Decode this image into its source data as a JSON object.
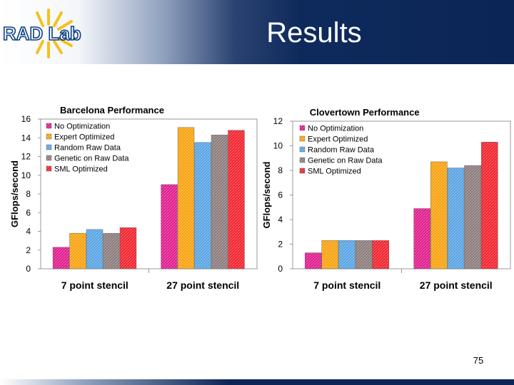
{
  "slide": {
    "title": "Results",
    "page_number": "75",
    "logo_text": "RAD Lab"
  },
  "colors": {
    "header_dark": "#0b2556",
    "title_text": "#ffffff"
  },
  "chart_data": [
    {
      "type": "bar",
      "title": "Barcelona Performance",
      "xlabel": "",
      "ylabel": "GFlops/second",
      "categories": [
        "7 point stencil",
        "27 point stencil"
      ],
      "series": [
        {
          "name": "No Optimization",
          "color": "#e0198c",
          "values": [
            2.3,
            9.0
          ]
        },
        {
          "name": "Expert Optimized",
          "color": "#f7a10c",
          "values": [
            3.8,
            15.1
          ]
        },
        {
          "name": "Random Raw Data",
          "color": "#56a3e4",
          "values": [
            4.2,
            13.5
          ]
        },
        {
          "name": "Genetic on Raw Data",
          "color": "#8a7a7a",
          "values": [
            3.8,
            14.3
          ]
        },
        {
          "name": "SML Optimized",
          "color": "#f2202a",
          "values": [
            4.4,
            14.8
          ]
        }
      ],
      "ylim": [
        0,
        16
      ],
      "yticks": [
        "0",
        "2",
        "4",
        "6",
        "8",
        "10",
        "12",
        "14",
        "16"
      ],
      "grid": false,
      "legend": "top-left"
    },
    {
      "type": "bar",
      "title": "Clovertown Performance",
      "xlabel": "",
      "ylabel": "GFlops/second",
      "categories": [
        "7 point stencil",
        "27 point stencil"
      ],
      "series": [
        {
          "name": "No Optimization",
          "color": "#e0198c",
          "values": [
            1.3,
            4.9
          ]
        },
        {
          "name": "Expert Optimized",
          "color": "#f7a10c",
          "values": [
            2.3,
            8.7
          ]
        },
        {
          "name": "Random Raw Data",
          "color": "#56a3e4",
          "values": [
            2.3,
            8.2
          ]
        },
        {
          "name": "Genetic on Raw Data",
          "color": "#8a7a7a",
          "values": [
            2.3,
            8.4
          ]
        },
        {
          "name": "SML Optimized",
          "color": "#f2202a",
          "values": [
            2.3,
            10.3
          ]
        }
      ],
      "ylim": [
        0,
        12
      ],
      "yticks": [
        "0",
        "2",
        "4",
        "6",
        "8",
        "10",
        "12"
      ],
      "grid": false,
      "legend": "top-left"
    }
  ]
}
